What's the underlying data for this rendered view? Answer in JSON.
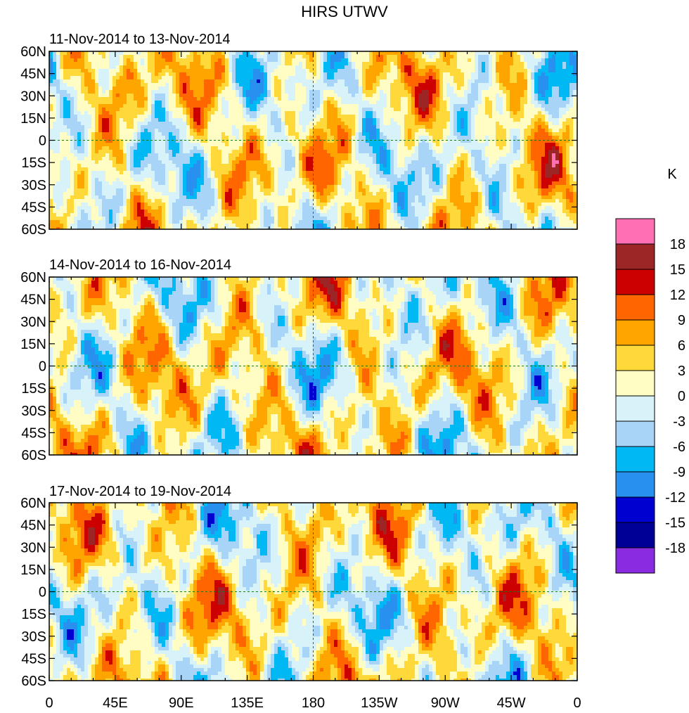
{
  "chart_data": {
    "type": "heatmap",
    "title": "HIRS UTWV",
    "colorbar": {
      "unit": "K",
      "levels": [
        18,
        15,
        12,
        9,
        6,
        3,
        0,
        -3,
        -6,
        -9,
        -12,
        -15,
        -18
      ],
      "colors": [
        "#ff6fb4",
        "#9c2626",
        "#cc0000",
        "#ff6600",
        "#ffa500",
        "#ffd83a",
        "#fffcc4",
        "#d8f2fa",
        "#a8d4f8",
        "#00b8f4",
        "#2890ee",
        "#0000d0",
        "#000096",
        "#8a2be2"
      ]
    },
    "x_ticks": [
      "0",
      "45E",
      "90E",
      "135E",
      "180",
      "135W",
      "90W",
      "45W",
      "0"
    ],
    "y_ticks": [
      "60N",
      "45N",
      "30N",
      "15N",
      "0",
      "15S",
      "30S",
      "45S",
      "60S"
    ],
    "xlim": [
      0,
      360
    ],
    "ylim": [
      -60,
      60
    ],
    "panels": [
      {
        "label": "11-Nov-2014 to 13-Nov-2014",
        "seed": 3
      },
      {
        "label": "14-Nov-2014 to 16-Nov-2014",
        "seed": 11
      },
      {
        "label": "17-Nov-2014 to 19-Nov-2014",
        "seed": 23
      }
    ]
  }
}
